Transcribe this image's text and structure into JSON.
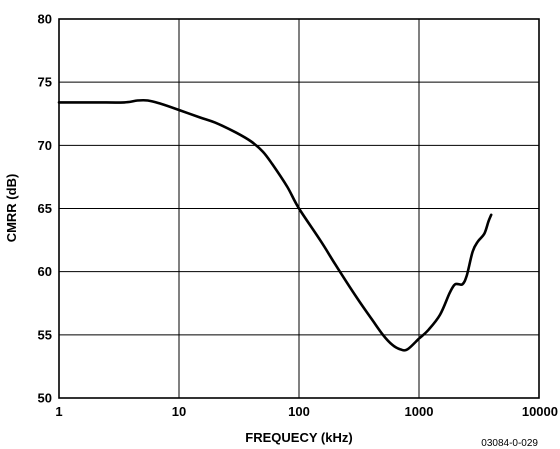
{
  "chart_data": {
    "type": "line",
    "title": "",
    "xlabel": "FREQUECY (kHz)",
    "ylabel": "CMRR (dB)",
    "x_scale": "log",
    "xlim": [
      1,
      10000
    ],
    "ylim": [
      50,
      80
    ],
    "x_ticks": [
      "1",
      "10",
      "100",
      "1000",
      "10000"
    ],
    "y_ticks": [
      "50",
      "55",
      "60",
      "65",
      "70",
      "75",
      "80"
    ],
    "grid": true,
    "legend": "none",
    "line_color": "#000000",
    "series": [
      {
        "x": [
          1,
          2,
          3.5,
          4.5,
          5.5,
          7,
          10,
          15,
          20,
          30,
          40,
          50,
          60,
          80,
          100,
          150,
          200,
          300,
          400,
          500,
          600,
          700,
          800,
          1000,
          1200,
          1500,
          1800,
          2000,
          2300,
          2500,
          2800,
          3100,
          3500,
          3800,
          4000
        ],
        "y": [
          73.4,
          73.4,
          73.4,
          73.55,
          73.55,
          73.3,
          72.8,
          72.2,
          71.8,
          71.0,
          70.3,
          69.5,
          68.5,
          66.7,
          65.0,
          62.5,
          60.6,
          58.0,
          56.3,
          55.0,
          54.2,
          53.85,
          53.85,
          54.7,
          55.4,
          56.6,
          58.3,
          59.0,
          59.0,
          59.7,
          61.6,
          62.4,
          63.0,
          64.0,
          64.5
        ]
      }
    ]
  },
  "figure_id": "03084-0-029"
}
